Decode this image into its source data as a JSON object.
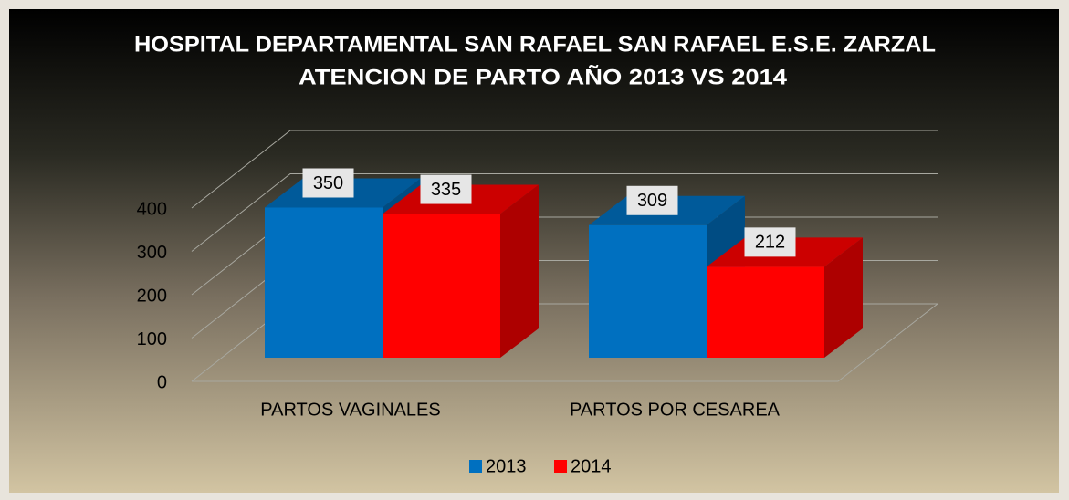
{
  "chart_data": {
    "type": "bar3d",
    "title": [
      "HOSPITAL DEPARTAMENTAL SAN RAFAEL SAN RAFAEL  E.S.E. ZARZAL",
      "ATENCION DE PARTO  AÑO 2013 VS 2014"
    ],
    "categories": [
      "PARTOS VAGINALES",
      "PARTOS POR CESAREA"
    ],
    "series": [
      {
        "name": "2013",
        "color": "#0070c0",
        "values": [
          350,
          309
        ]
      },
      {
        "name": "2014",
        "color": "#ff0000",
        "values": [
          335,
          212
        ]
      }
    ],
    "ylim": [
      0,
      400
    ],
    "yticks": [
      0,
      100,
      200,
      300,
      400
    ],
    "grid": true,
    "legend": "bottom"
  }
}
